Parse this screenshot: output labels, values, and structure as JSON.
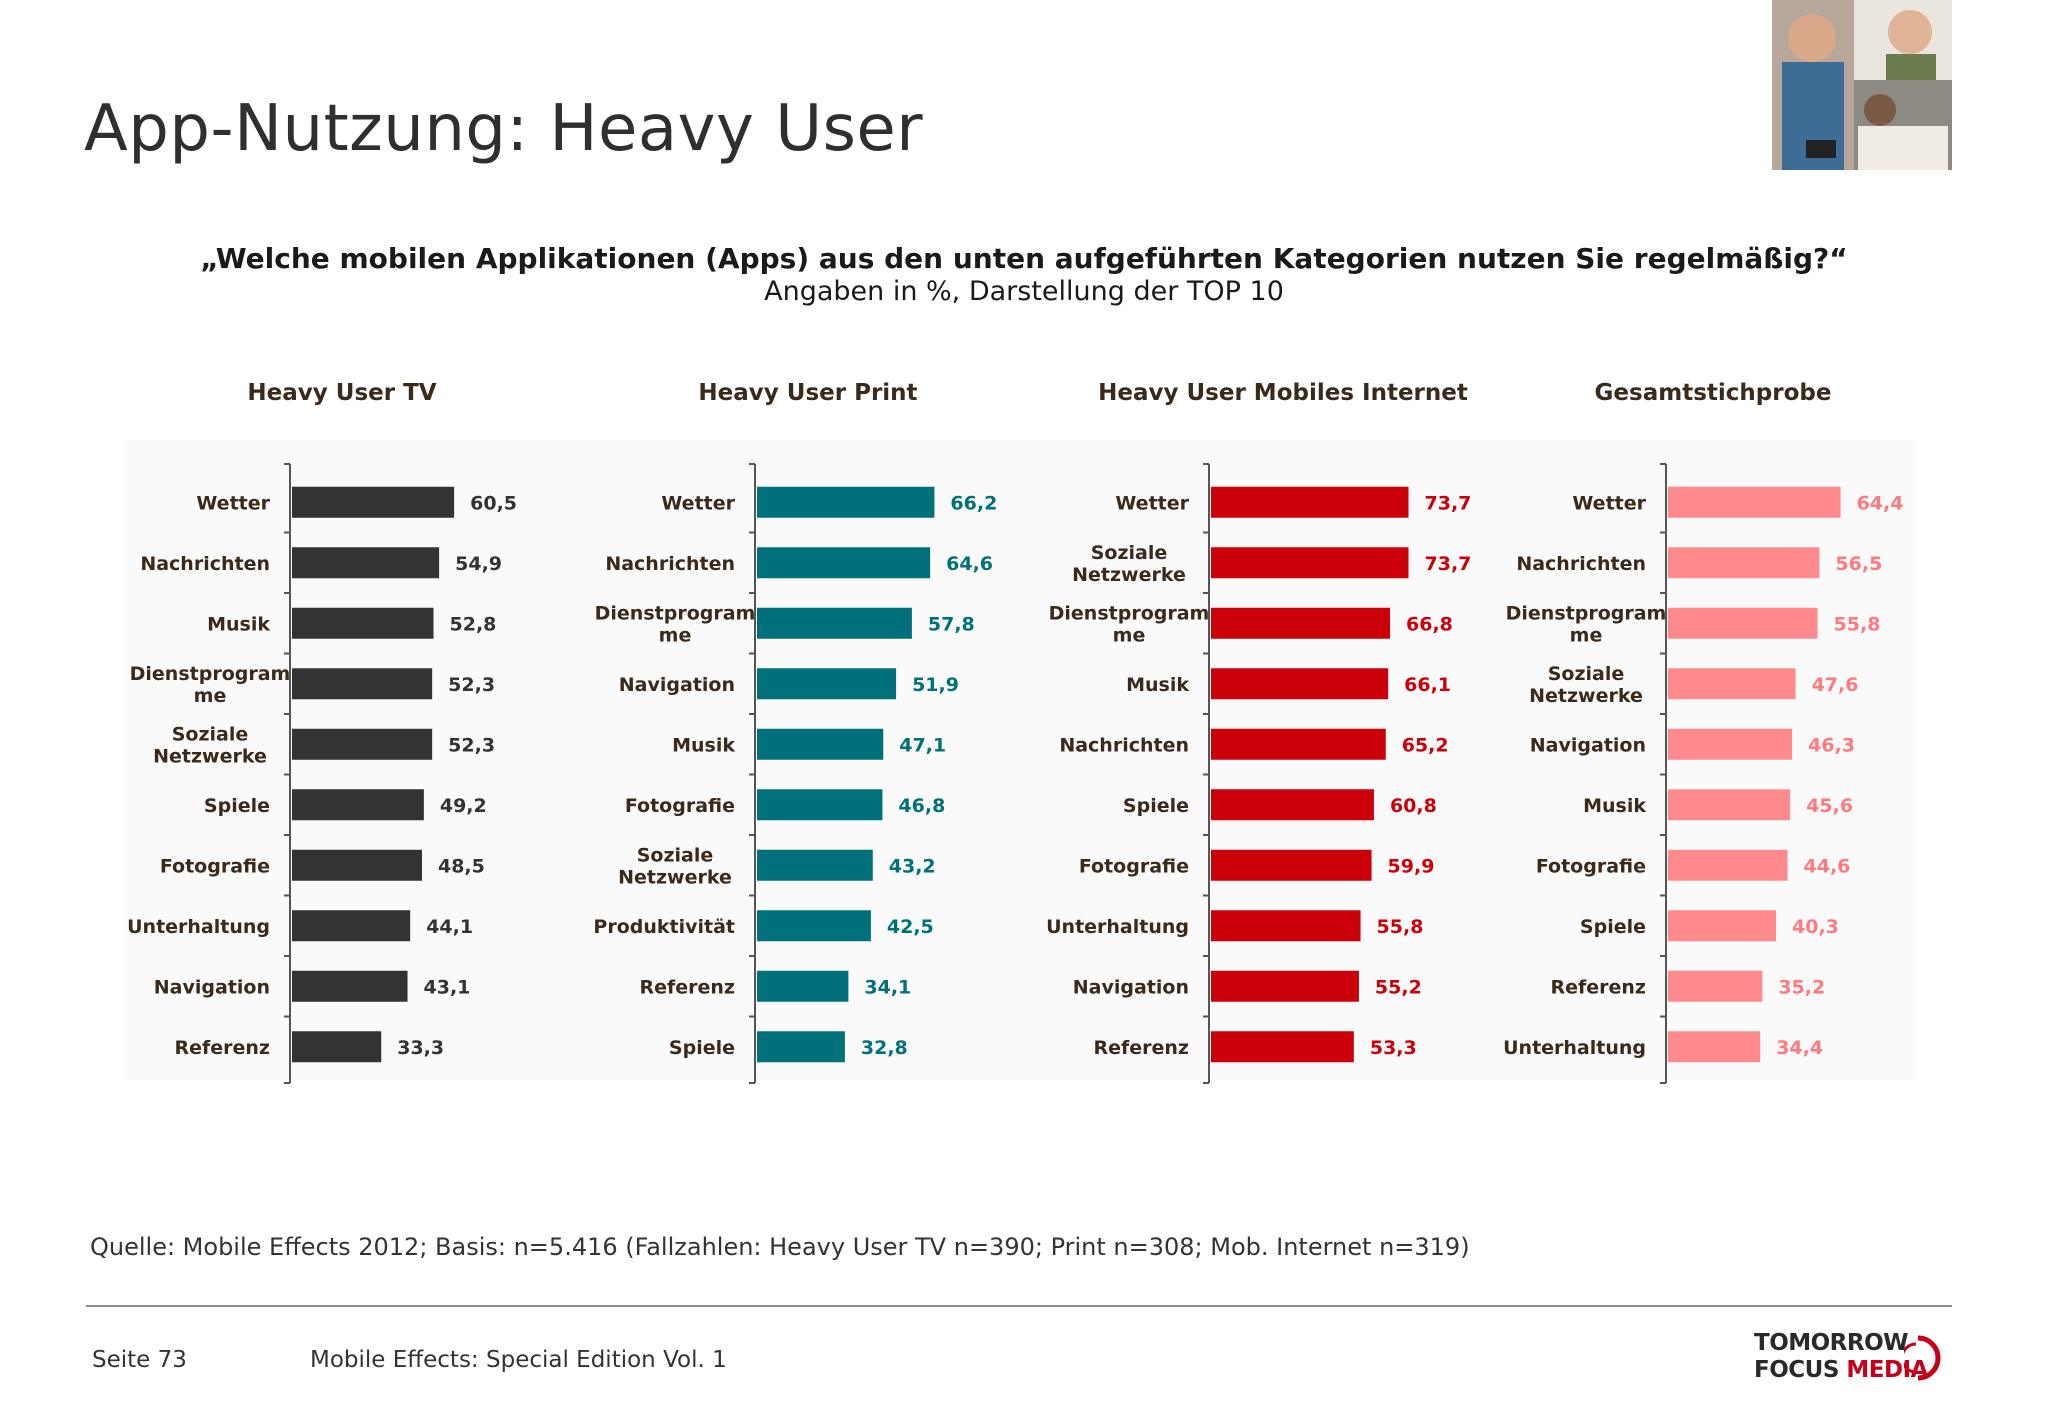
{
  "header": {
    "title": "App-Nutzung: Heavy User",
    "question": "„Welche mobilen Applikationen (Apps) aus den unten aufgeführten Kategorien nutzen Sie regelmäßig?“",
    "subtitle": "Angaben in %, Darstellung der TOP 10"
  },
  "footer": {
    "source": "Quelle: Mobile Effects 2012; Basis: n=5.416 (Fallzahlen: Heavy User TV n=390; Print n=308; Mob. Internet n=319)",
    "page": "Seite 73",
    "edition": "Mobile Effects: Special Edition Vol. 1",
    "logo_line1": "TOMORROW",
    "logo_line2a": "FOCUS",
    "logo_line2b": "MEDIA"
  },
  "colors": {
    "tv": "#333235",
    "print": "#00707a",
    "internet": "#cc0008",
    "gesamt": "#ff8a8e"
  },
  "chart_data": [
    {
      "type": "bar",
      "orientation": "horizontal",
      "title": "Heavy User TV",
      "color": "#333235",
      "categories": [
        "Wetter",
        "Nachrichten",
        "Musik",
        "Dienstprogramme",
        "Soziale Netzwerke",
        "Spiele",
        "Fotografie",
        "Unterhaltung",
        "Navigation",
        "Referenz"
      ],
      "labels": [
        [
          "Wetter"
        ],
        [
          "Nachrichten"
        ],
        [
          "Musik"
        ],
        [
          "Dienstprogram",
          "me"
        ],
        [
          "Soziale",
          "Netzwerke"
        ],
        [
          "Spiele"
        ],
        [
          "Fotografie"
        ],
        [
          "Unterhaltung"
        ],
        [
          "Navigation"
        ],
        [
          "Referenz"
        ]
      ],
      "values": [
        60.5,
        54.9,
        52.8,
        52.3,
        52.3,
        49.2,
        48.5,
        44.1,
        43.1,
        33.3
      ],
      "value_labels": [
        "60,5",
        "54,9",
        "52,8",
        "52,3",
        "52,3",
        "49,2",
        "48,5",
        "44,1",
        "43,1",
        "33,3"
      ]
    },
    {
      "type": "bar",
      "orientation": "horizontal",
      "title": "Heavy User Print",
      "color": "#00707a",
      "categories": [
        "Wetter",
        "Nachrichten",
        "Dienstprogramme",
        "Navigation",
        "Musik",
        "Fotografie",
        "Soziale Netzwerke",
        "Produktivität",
        "Referenz",
        "Spiele"
      ],
      "labels": [
        [
          "Wetter"
        ],
        [
          "Nachrichten"
        ],
        [
          "Dienstprogram",
          "me"
        ],
        [
          "Navigation"
        ],
        [
          "Musik"
        ],
        [
          "Fotografie"
        ],
        [
          "Soziale",
          "Netzwerke"
        ],
        [
          "Produktivität"
        ],
        [
          "Referenz"
        ],
        [
          "Spiele"
        ]
      ],
      "values": [
        66.2,
        64.6,
        57.8,
        51.9,
        47.1,
        46.8,
        43.2,
        42.5,
        34.1,
        32.8
      ],
      "value_labels": [
        "66,2",
        "64,6",
        "57,8",
        "51,9",
        "47,1",
        "46,8",
        "43,2",
        "42,5",
        "34,1",
        "32,8"
      ]
    },
    {
      "type": "bar",
      "orientation": "horizontal",
      "title": "Heavy User Mobiles Internet",
      "color": "#cc0008",
      "categories": [
        "Wetter",
        "Soziale Netzwerke",
        "Dienstprogramme",
        "Musik",
        "Nachrichten",
        "Spiele",
        "Fotografie",
        "Unterhaltung",
        "Navigation",
        "Referenz"
      ],
      "labels": [
        [
          "Wetter"
        ],
        [
          "Soziale",
          "Netzwerke"
        ],
        [
          "Dienstprogram",
          "me"
        ],
        [
          "Musik"
        ],
        [
          "Nachrichten"
        ],
        [
          "Spiele"
        ],
        [
          "Fotografie"
        ],
        [
          "Unterhaltung"
        ],
        [
          "Navigation"
        ],
        [
          "Referenz"
        ]
      ],
      "values": [
        73.7,
        73.7,
        66.8,
        66.1,
        65.2,
        60.8,
        59.9,
        55.8,
        55.2,
        53.3
      ],
      "value_labels": [
        "73,7",
        "73,7",
        "66,8",
        "66,1",
        "65,2",
        "60,8",
        "59,9",
        "55,8",
        "55,2",
        "53,3"
      ]
    },
    {
      "type": "bar",
      "orientation": "horizontal",
      "title": "Gesamtstichprobe",
      "color": "#ff8a8e",
      "categories": [
        "Wetter",
        "Nachrichten",
        "Dienstprogramme",
        "Soziale Netzwerke",
        "Navigation",
        "Musik",
        "Fotografie",
        "Spiele",
        "Referenz",
        "Unterhaltung"
      ],
      "labels": [
        [
          "Wetter"
        ],
        [
          "Nachrichten"
        ],
        [
          "Dienstprogram",
          "me"
        ],
        [
          "Soziale",
          "Netzwerke"
        ],
        [
          "Navigation"
        ],
        [
          "Musik"
        ],
        [
          "Fotografie"
        ],
        [
          "Spiele"
        ],
        [
          "Referenz"
        ],
        [
          "Unterhaltung"
        ]
      ],
      "values": [
        64.4,
        56.5,
        55.8,
        47.6,
        46.3,
        45.6,
        44.6,
        40.3,
        35.2,
        34.4
      ],
      "value_labels": [
        "64,4",
        "56,5",
        "55,8",
        "47,6",
        "46,3",
        "45,6",
        "44,6",
        "40,3",
        "35,2",
        "34,4"
      ]
    }
  ]
}
